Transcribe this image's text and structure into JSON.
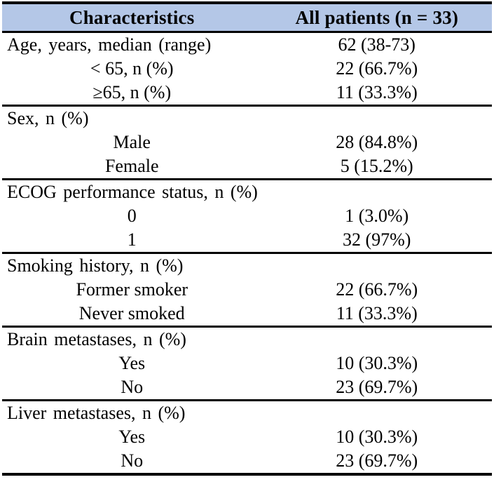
{
  "table": {
    "header": {
      "characteristics": "Characteristics",
      "all_patients": "All patients (n = 33)"
    },
    "rows": [
      {
        "label": "Age, years, median (range)",
        "value": "62 (38-73)",
        "indent": false,
        "divider_above": false
      },
      {
        "label": "< 65, n (%)",
        "value": "22 (66.7%)",
        "indent": true,
        "divider_above": false
      },
      {
        "label": "≥65, n (%)",
        "value": "11 (33.3%)",
        "indent": true,
        "divider_above": false
      },
      {
        "label": "Sex, n (%)",
        "value": "",
        "indent": false,
        "divider_above": true
      },
      {
        "label": "Male",
        "value": "28 (84.8%)",
        "indent": true,
        "divider_above": false
      },
      {
        "label": "Female",
        "value": "5 (15.2%)",
        "indent": true,
        "divider_above": false
      },
      {
        "label": "ECOG performance status, n (%)",
        "value": "",
        "indent": false,
        "divider_above": true
      },
      {
        "label": "0",
        "value": "1 (3.0%)",
        "indent": true,
        "divider_above": false
      },
      {
        "label": "1",
        "value": "32 (97%)",
        "indent": true,
        "divider_above": false
      },
      {
        "label": "Smoking history, n (%)",
        "value": "",
        "indent": false,
        "divider_above": true
      },
      {
        "label": "Former smoker",
        "value": "22 (66.7%)",
        "indent": true,
        "divider_above": false
      },
      {
        "label": "Never smoked",
        "value": "11 (33.3%)",
        "indent": true,
        "divider_above": false
      },
      {
        "label": "Brain metastases, n (%)",
        "value": "",
        "indent": false,
        "divider_above": true
      },
      {
        "label": "Yes",
        "value": "10 (30.3%)",
        "indent": true,
        "divider_above": false
      },
      {
        "label": "No",
        "value": "23 (69.7%)",
        "indent": true,
        "divider_above": false
      },
      {
        "label": "Liver metastases, n (%)",
        "value": "",
        "indent": false,
        "divider_above": true
      },
      {
        "label": "Yes",
        "value": "10 (30.3%)",
        "indent": true,
        "divider_above": false
      },
      {
        "label": "No",
        "value": "23 (69.7%)",
        "indent": true,
        "divider_above": false
      }
    ],
    "colors": {
      "header_bg": "#b4c7e7",
      "border": "#000000",
      "text": "#000000",
      "background": "#ffffff"
    }
  }
}
